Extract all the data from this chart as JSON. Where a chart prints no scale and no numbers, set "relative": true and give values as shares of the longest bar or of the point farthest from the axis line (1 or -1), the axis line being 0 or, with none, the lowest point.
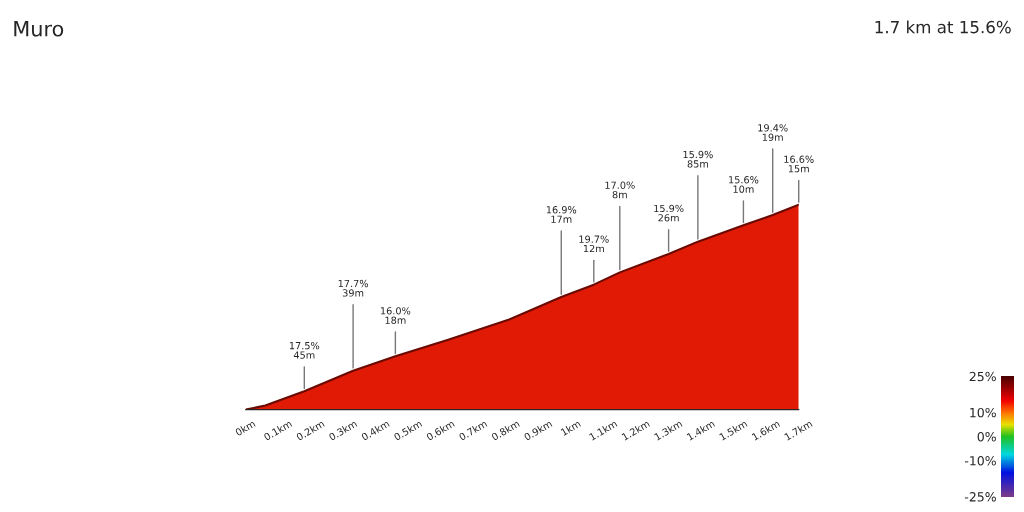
{
  "chart_data": {
    "type": "area",
    "title": "Muro",
    "subtitle": "1.7 km at 15.6%",
    "relative": true,
    "x": [
      0,
      0.06,
      0.18,
      0.33,
      0.46,
      0.62,
      0.81,
      0.97,
      1.07,
      1.15,
      1.3,
      1.39,
      1.53,
      1.62,
      1.7
    ],
    "series": [
      {
        "color": "#e01a05",
        "values": [
          0,
          0.02,
          0.09,
          0.19,
          0.26,
          0.34,
          0.44,
          0.55,
          0.61,
          0.67,
          0.76,
          0.82,
          0.9,
          0.95,
          1.0
        ]
      }
    ],
    "xlim": [
      0,
      1.7
    ],
    "xticks": [
      {
        "value": 0,
        "label": "0km"
      },
      {
        "value": 0.1,
        "label": "0.1km"
      },
      {
        "value": 0.2,
        "label": "0.2km"
      },
      {
        "value": 0.3,
        "label": "0.3km"
      },
      {
        "value": 0.4,
        "label": "0.4km"
      },
      {
        "value": 0.5,
        "label": "0.5km"
      },
      {
        "value": 0.6,
        "label": "0.6km"
      },
      {
        "value": 0.7,
        "label": "0.7km"
      },
      {
        "value": 0.8,
        "label": "0.8km"
      },
      {
        "value": 0.9,
        "label": "0.9km"
      },
      {
        "value": 1,
        "label": "1km"
      },
      {
        "value": 1.1,
        "label": "1.1km"
      },
      {
        "value": 1.2,
        "label": "1.2km"
      },
      {
        "value": 1.3,
        "label": "1.3km"
      },
      {
        "value": 1.4,
        "label": "1.4km"
      },
      {
        "value": 1.5,
        "label": "1.5km"
      },
      {
        "value": 1.6,
        "label": "1.6km"
      },
      {
        "value": 1.7,
        "label": "1.7km"
      }
    ],
    "annotations": [
      {
        "text": "17.5%\n45m",
        "x": 0.18,
        "y": 0.09
      },
      {
        "text": "17.7%\n39m",
        "x": 0.33,
        "y": 0.19
      },
      {
        "text": "16.0%\n18m",
        "x": 0.46,
        "y": 0.26
      },
      {
        "text": "16.9%\n17m",
        "x": 0.97,
        "y": 0.55
      },
      {
        "text": "19.7%\n12m",
        "x": 1.07,
        "y": 0.61
      },
      {
        "text": "17.0%\n8m",
        "x": 1.15,
        "y": 0.67
      },
      {
        "text": "15.9%\n26m",
        "x": 1.3,
        "y": 0.76
      },
      {
        "text": "15.9%\n85m",
        "x": 1.39,
        "y": 0.82
      },
      {
        "text": "15.6%\n10m",
        "x": 1.53,
        "y": 0.9
      },
      {
        "text": "19.4%\n19m",
        "x": 1.62,
        "y": 0.95
      },
      {
        "text": "16.6%\n15m",
        "x": 1.7,
        "y": 1.0
      }
    ],
    "clim": [
      -25,
      25
    ],
    "cticks": [
      {
        "value": 25,
        "label": "25%"
      },
      {
        "value": 10,
        "label": "10%"
      },
      {
        "value": 0,
        "label": "0%"
      },
      {
        "value": -10,
        "label": "-10%"
      },
      {
        "value": -25,
        "label": "-25%"
      }
    ],
    "grid": false,
    "legend": false
  }
}
